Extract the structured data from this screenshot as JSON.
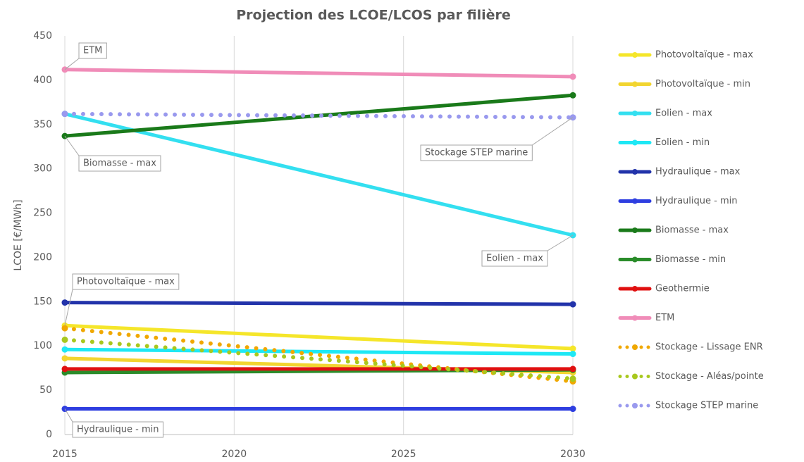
{
  "chart_data": {
    "type": "line",
    "title": "Projection des LCOE/LCOS par filière",
    "ylabel": "LCOE [€/MWh]",
    "x": [
      2015,
      2030
    ],
    "xlim": [
      2015,
      2030
    ],
    "xticks": [
      2015,
      2020,
      2025,
      2030
    ],
    "ylim": [
      0,
      450
    ],
    "yticks": [
      0,
      50,
      100,
      150,
      200,
      250,
      300,
      350,
      400,
      450
    ],
    "grid": "x",
    "legend": "right",
    "series": [
      {
        "name": "Photovoltaïque - max",
        "color": "#f5e62a",
        "values": [
          123,
          97
        ]
      },
      {
        "name": "Photovoltaïque - min",
        "color": "#f2d530",
        "values": [
          86,
          70
        ]
      },
      {
        "name": "Eolien - max",
        "color": "#33dff0",
        "values": [
          362,
          225
        ]
      },
      {
        "name": "Eolien - min",
        "color": "#1ee8f5",
        "values": [
          96,
          91
        ]
      },
      {
        "name": "Hydraulique - max",
        "color": "#2233aa",
        "values": [
          149,
          147
        ]
      },
      {
        "name": "Hydraulique - min",
        "color": "#2e3ee0",
        "values": [
          29,
          29
        ]
      },
      {
        "name": "Biomasse - max",
        "color": "#1a7a1a",
        "values": [
          337,
          383
        ]
      },
      {
        "name": "Biomasse - min",
        "color": "#2a8c2a",
        "values": [
          70,
          73
        ]
      },
      {
        "name": "Geothermie",
        "color": "#e01010",
        "values": [
          74,
          74
        ]
      },
      {
        "name": "ETM",
        "color": "#f08cb8",
        "values": [
          412,
          404
        ]
      },
      {
        "name": "Stockage - Lissage ENR",
        "color": "#f0a800",
        "style": "dotted",
        "values": [
          120,
          60
        ]
      },
      {
        "name": "Stockage - Aléas/pointe",
        "color": "#a8c81e",
        "style": "dotted",
        "values": [
          107,
          63
        ]
      },
      {
        "name": "Stockage STEP marine",
        "color": "#9999ee",
        "style": "dotted",
        "values": [
          362,
          358
        ]
      }
    ],
    "annotations": [
      "ETM",
      "Biomasse - max",
      "Stockage STEP marine",
      "Eolien - max",
      "Photovoltaïque - max",
      "Hydraulique - min"
    ]
  }
}
